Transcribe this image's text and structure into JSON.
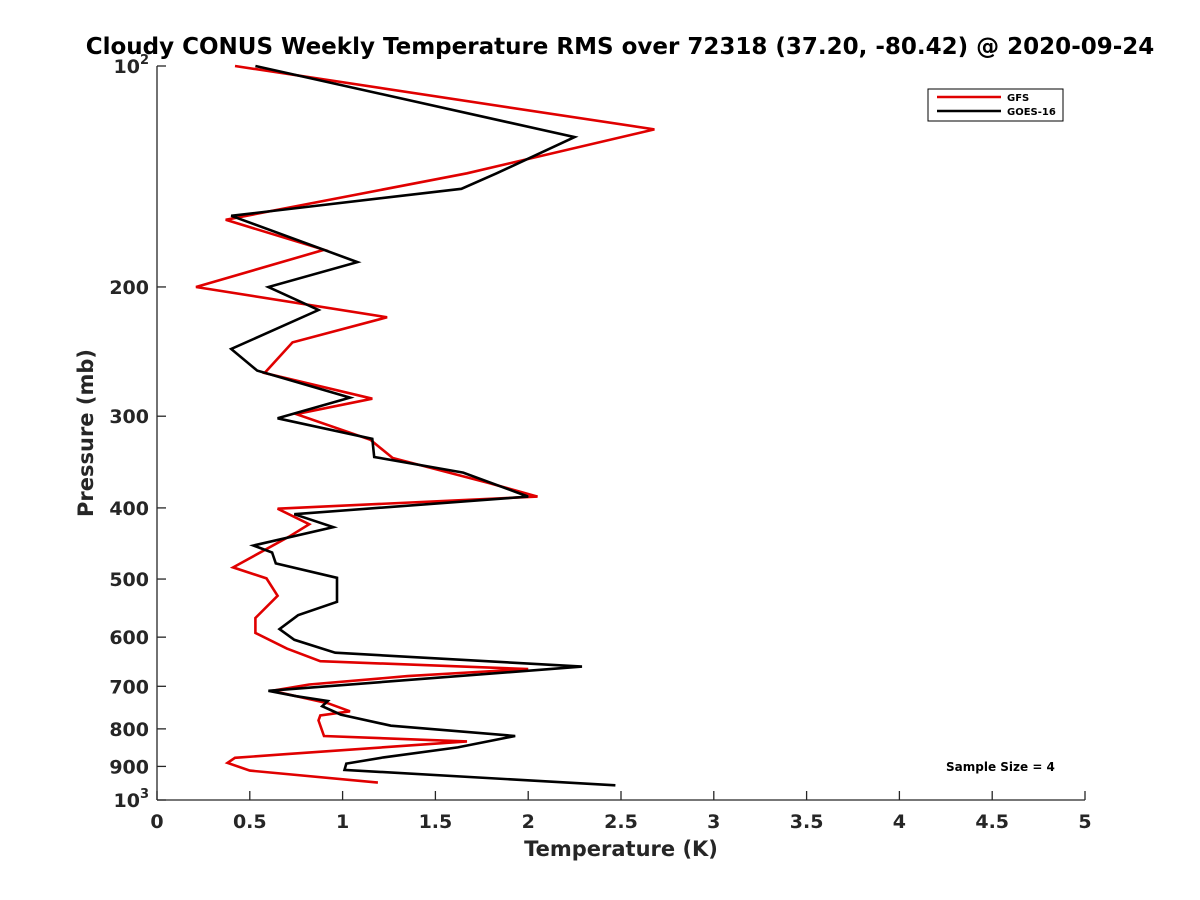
{
  "chart_data": {
    "type": "line",
    "title": "Cloudy CONUS Weekly Temperature RMS over 72318 (37.20, -80.42) @ 2020-09-24",
    "xlabel": "Temperature (K)",
    "ylabel": "Pressure (mb)",
    "xlim": [
      0,
      5
    ],
    "ylim": [
      100,
      1000
    ],
    "y_scale": "log",
    "y_reversed": true,
    "x_ticks": [
      "0",
      "0.5",
      "1",
      "1.5",
      "2",
      "2.5",
      "3",
      "3.5",
      "4",
      "4.5",
      "5"
    ],
    "x_tick_values": [
      0,
      0.5,
      1,
      1.5,
      2,
      2.5,
      3,
      3.5,
      4,
      4.5,
      5
    ],
    "y_tick_values": [
      100,
      200,
      300,
      400,
      500,
      600,
      700,
      800,
      900,
      1000
    ],
    "y_ticks": [
      {
        "base": "10",
        "exp": "2"
      },
      {
        "base": "200",
        "exp": ""
      },
      {
        "base": "300",
        "exp": ""
      },
      {
        "base": "400",
        "exp": ""
      },
      {
        "base": "500",
        "exp": ""
      },
      {
        "base": "600",
        "exp": ""
      },
      {
        "base": "700",
        "exp": ""
      },
      {
        "base": "800",
        "exp": ""
      },
      {
        "base": "900",
        "exp": ""
      },
      {
        "base": "10",
        "exp": "3"
      }
    ],
    "legend_position": "top-right",
    "annotation": "Sample Size = 4",
    "series": [
      {
        "name": "GFS",
        "color": "#e00000",
        "points": [
          [
            0.42,
            100
          ],
          [
            2.68,
            122
          ],
          [
            1.67,
            140
          ],
          [
            0.37,
            162
          ],
          [
            0.9,
            178
          ],
          [
            0.21,
            200
          ],
          [
            1.24,
            220
          ],
          [
            0.73,
            238
          ],
          [
            0.58,
            262
          ],
          [
            1.16,
            284
          ],
          [
            0.75,
            298
          ],
          [
            1.15,
            323
          ],
          [
            1.27,
            342
          ],
          [
            1.79,
            370
          ],
          [
            2.05,
            386
          ],
          [
            0.65,
            401
          ],
          [
            0.82,
            421
          ],
          [
            0.71,
            438
          ],
          [
            0.41,
            482
          ],
          [
            0.59,
            499
          ],
          [
            0.65,
            527
          ],
          [
            0.53,
            565
          ],
          [
            0.53,
            592
          ],
          [
            0.7,
            622
          ],
          [
            0.88,
            647
          ],
          [
            2.0,
            663
          ],
          [
            1.35,
            678
          ],
          [
            0.82,
            696
          ],
          [
            0.62,
            710
          ],
          [
            0.92,
            738
          ],
          [
            1.04,
            757
          ],
          [
            0.88,
            767
          ],
          [
            0.87,
            779
          ],
          [
            0.9,
            818
          ],
          [
            1.67,
            832
          ],
          [
            0.7,
            866
          ],
          [
            0.42,
            876
          ],
          [
            0.38,
            890
          ],
          [
            0.5,
            912
          ],
          [
            1.19,
            947
          ]
        ]
      },
      {
        "name": "GOES-16",
        "color": "#000000",
        "points": [
          [
            0.53,
            100
          ],
          [
            2.25,
            125
          ],
          [
            1.83,
            140
          ],
          [
            1.64,
            147
          ],
          [
            0.4,
            160
          ],
          [
            1.08,
            185
          ],
          [
            0.6,
            200
          ],
          [
            0.87,
            215
          ],
          [
            0.4,
            243
          ],
          [
            0.54,
            260
          ],
          [
            1.04,
            283
          ],
          [
            0.65,
            302
          ],
          [
            1.16,
            322
          ],
          [
            1.17,
            341
          ],
          [
            1.65,
            358
          ],
          [
            2.0,
            386
          ],
          [
            0.74,
            408
          ],
          [
            0.95,
            425
          ],
          [
            0.52,
            450
          ],
          [
            0.62,
            460
          ],
          [
            0.64,
            476
          ],
          [
            0.97,
            498
          ],
          [
            0.97,
            537
          ],
          [
            0.76,
            560
          ],
          [
            0.66,
            585
          ],
          [
            0.74,
            605
          ],
          [
            0.96,
            630
          ],
          [
            2.29,
            658
          ],
          [
            0.6,
            710
          ],
          [
            0.75,
            722
          ],
          [
            0.92,
            733
          ],
          [
            0.89,
            745
          ],
          [
            0.99,
            765
          ],
          [
            1.26,
            792
          ],
          [
            1.93,
            818
          ],
          [
            1.62,
            848
          ],
          [
            1.22,
            875
          ],
          [
            1.02,
            892
          ],
          [
            1.01,
            910
          ],
          [
            2.47,
            955
          ]
        ]
      }
    ]
  }
}
